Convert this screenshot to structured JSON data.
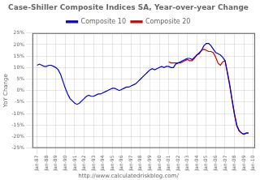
{
  "chart_data": {
    "type": "line",
    "title": "Case-Shiller Composite Indices SA, Year-over-year Change",
    "annotations": [
      "http://www.calculatedriskblog.com/"
    ],
    "y_label": "YoY Change",
    "grid": true,
    "legend": "top",
    "xlim": [
      1986.5,
      2010.2
    ],
    "xticks": [
      {
        "value": 1987,
        "label": "Jan-87"
      },
      {
        "value": 1988,
        "label": "Jan-88"
      },
      {
        "value": 1989,
        "label": "Jan-89"
      },
      {
        "value": 1990,
        "label": "Jan-90"
      },
      {
        "value": 1991,
        "label": "Jan-91"
      },
      {
        "value": 1992,
        "label": "Jan-92"
      },
      {
        "value": 1993,
        "label": "Jan-93"
      },
      {
        "value": 1994,
        "label": "Jan-94"
      },
      {
        "value": 1995,
        "label": "Jan-95"
      },
      {
        "value": 1996,
        "label": "Jan-96"
      },
      {
        "value": 1997,
        "label": "Jan-97"
      },
      {
        "value": 1998,
        "label": "Jan-98"
      },
      {
        "value": 1999,
        "label": "Jan-99"
      },
      {
        "value": 2000,
        "label": "Jan-00"
      },
      {
        "value": 2001,
        "label": "Jan-01"
      },
      {
        "value": 2002,
        "label": "Jan-02"
      },
      {
        "value": 2003,
        "label": "Jan-03"
      },
      {
        "value": 2004,
        "label": "Jan-04"
      },
      {
        "value": 2005,
        "label": "Jan-05"
      },
      {
        "value": 2006,
        "label": "Jan-06"
      },
      {
        "value": 2007,
        "label": "Jan-07"
      },
      {
        "value": 2008,
        "label": "Jan-08"
      },
      {
        "value": 2009,
        "label": "Jan-09"
      },
      {
        "value": 2010,
        "label": "Jan-10"
      }
    ],
    "ylim": [
      -25,
      25
    ],
    "yticks": [
      {
        "value": -25,
        "label": "-25%"
      },
      {
        "value": -20,
        "label": "-20%"
      },
      {
        "value": -15,
        "label": "-15%"
      },
      {
        "value": -10,
        "label": "-10%"
      },
      {
        "value": -5,
        "label": "-5%"
      },
      {
        "value": 0,
        "label": "0%"
      },
      {
        "value": 5,
        "label": "5%"
      },
      {
        "value": 10,
        "label": "10%"
      },
      {
        "value": 15,
        "label": "15%"
      },
      {
        "value": 20,
        "label": "20%"
      },
      {
        "value": 25,
        "label": "25%"
      }
    ],
    "series": [
      {
        "name": "Composite 10",
        "color": "#0000cc",
        "x": [
          1987.0,
          1987.25,
          1987.5,
          1987.75,
          1988.0,
          1988.25,
          1988.5,
          1988.75,
          1989.0,
          1989.25,
          1989.5,
          1989.75,
          1990.0,
          1990.25,
          1990.5,
          1990.75,
          1991.0,
          1991.25,
          1991.5,
          1991.75,
          1992.0,
          1992.25,
          1992.5,
          1992.75,
          1993.0,
          1993.25,
          1993.5,
          1993.75,
          1994.0,
          1994.25,
          1994.5,
          1994.75,
          1995.0,
          1995.25,
          1995.5,
          1995.75,
          1996.0,
          1996.25,
          1996.5,
          1996.75,
          1997.0,
          1997.25,
          1997.5,
          1997.75,
          1998.0,
          1998.25,
          1998.5,
          1998.75,
          1999.0,
          1999.25,
          1999.5,
          1999.75,
          2000.0,
          2000.25,
          2000.5,
          2000.75,
          2001.0,
          2001.25,
          2001.5,
          2001.75,
          2002.0,
          2002.25,
          2002.5,
          2002.75,
          2003.0,
          2003.25,
          2003.5,
          2003.75,
          2004.0,
          2004.25,
          2004.5,
          2004.75,
          2005.0,
          2005.25,
          2005.5,
          2005.75,
          2006.0,
          2006.25,
          2006.5,
          2006.75,
          2007.0,
          2007.25,
          2007.5,
          2007.75,
          2008.0,
          2008.25,
          2008.5,
          2008.75,
          2009.0,
          2009.25,
          2009.5
        ],
        "values": [
          11.0,
          11.5,
          11.0,
          10.5,
          10.5,
          11.0,
          11.0,
          10.5,
          10.0,
          9.0,
          7.0,
          4.0,
          1.0,
          -1.5,
          -3.5,
          -4.5,
          -5.5,
          -6.0,
          -5.5,
          -4.5,
          -3.5,
          -2.5,
          -2.0,
          -2.5,
          -2.5,
          -2.0,
          -1.5,
          -1.5,
          -1.0,
          -0.5,
          0.0,
          0.5,
          1.0,
          1.0,
          0.5,
          0.0,
          0.5,
          1.0,
          1.5,
          1.5,
          2.0,
          2.5,
          3.0,
          4.0,
          5.0,
          6.0,
          7.0,
          8.0,
          9.0,
          9.5,
          9.0,
          9.5,
          10.0,
          10.5,
          10.0,
          10.5,
          10.5,
          10.0,
          10.0,
          11.5,
          12.0,
          12.5,
          13.0,
          13.5,
          14.0,
          14.0,
          13.5,
          14.5,
          15.5,
          16.0,
          17.5,
          19.5,
          20.5,
          20.5,
          19.5,
          18.0,
          16.5,
          16.0,
          15.5,
          14.5,
          13.0,
          8.0,
          2.5,
          -4.0,
          -10.0,
          -15.0,
          -17.5,
          -18.5,
          -19.0,
          -18.5,
          -18.5
        ]
      },
      {
        "name": "Composite 20",
        "color": "#cc0000",
        "x": [
          2001.0,
          2001.25,
          2001.5,
          2001.75,
          2002.0,
          2002.25,
          2002.5,
          2002.75,
          2003.0,
          2003.25,
          2003.5,
          2003.75,
          2004.0,
          2004.25,
          2004.5,
          2004.75,
          2005.0,
          2005.25,
          2005.5,
          2005.75,
          2006.0,
          2006.25,
          2006.5,
          2006.75,
          2007.0,
          2007.25,
          2007.5,
          2007.75,
          2008.0,
          2008.25,
          2008.5,
          2008.75,
          2009.0,
          2009.25,
          2009.5
        ],
        "values": [
          12.5,
          12.0,
          12.0,
          12.0,
          12.0,
          12.0,
          12.5,
          13.0,
          13.5,
          13.0,
          13.0,
          14.0,
          15.5,
          16.5,
          17.5,
          18.0,
          17.5,
          17.0,
          17.0,
          16.5,
          14.5,
          12.0,
          11.0,
          12.5,
          13.0,
          7.5,
          2.0,
          -4.5,
          -10.5,
          -15.5,
          -17.5,
          -18.5,
          -19.0,
          -18.5,
          -18.5
        ]
      }
    ]
  }
}
